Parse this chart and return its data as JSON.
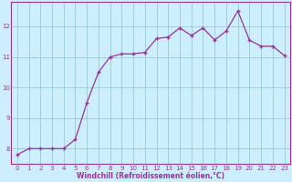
{
  "x": [
    0,
    1,
    2,
    3,
    4,
    5,
    6,
    7,
    8,
    9,
    10,
    11,
    12,
    13,
    14,
    15,
    16,
    17,
    18,
    19,
    20,
    21,
    22,
    23
  ],
  "y": [
    7.8,
    8.0,
    8.0,
    8.0,
    8.0,
    8.3,
    9.5,
    10.5,
    11.0,
    11.1,
    11.1,
    11.15,
    11.6,
    11.65,
    11.95,
    11.7,
    11.95,
    11.55,
    11.85,
    12.5,
    11.55,
    11.35,
    11.35,
    11.05
  ],
  "line_color": "#993399",
  "marker": "+",
  "markersize": 3.5,
  "markeredgewidth": 1.0,
  "linewidth": 0.9,
  "bg_color": "#cceeff",
  "grid_color": "#99cccc",
  "xlabel": "Windchill (Refroidissement éolien,°C)",
  "xlabel_color": "#993399",
  "tick_color": "#993399",
  "spine_color": "#993399",
  "ylim": [
    7.5,
    12.8
  ],
  "xlim": [
    -0.5,
    23.5
  ],
  "yticks": [
    8,
    9,
    10,
    11,
    12
  ],
  "xticks": [
    0,
    1,
    2,
    3,
    4,
    5,
    6,
    7,
    8,
    9,
    10,
    11,
    12,
    13,
    14,
    15,
    16,
    17,
    18,
    19,
    20,
    21,
    22,
    23
  ],
  "tick_fontsize": 5.0,
  "xlabel_fontsize": 5.5
}
